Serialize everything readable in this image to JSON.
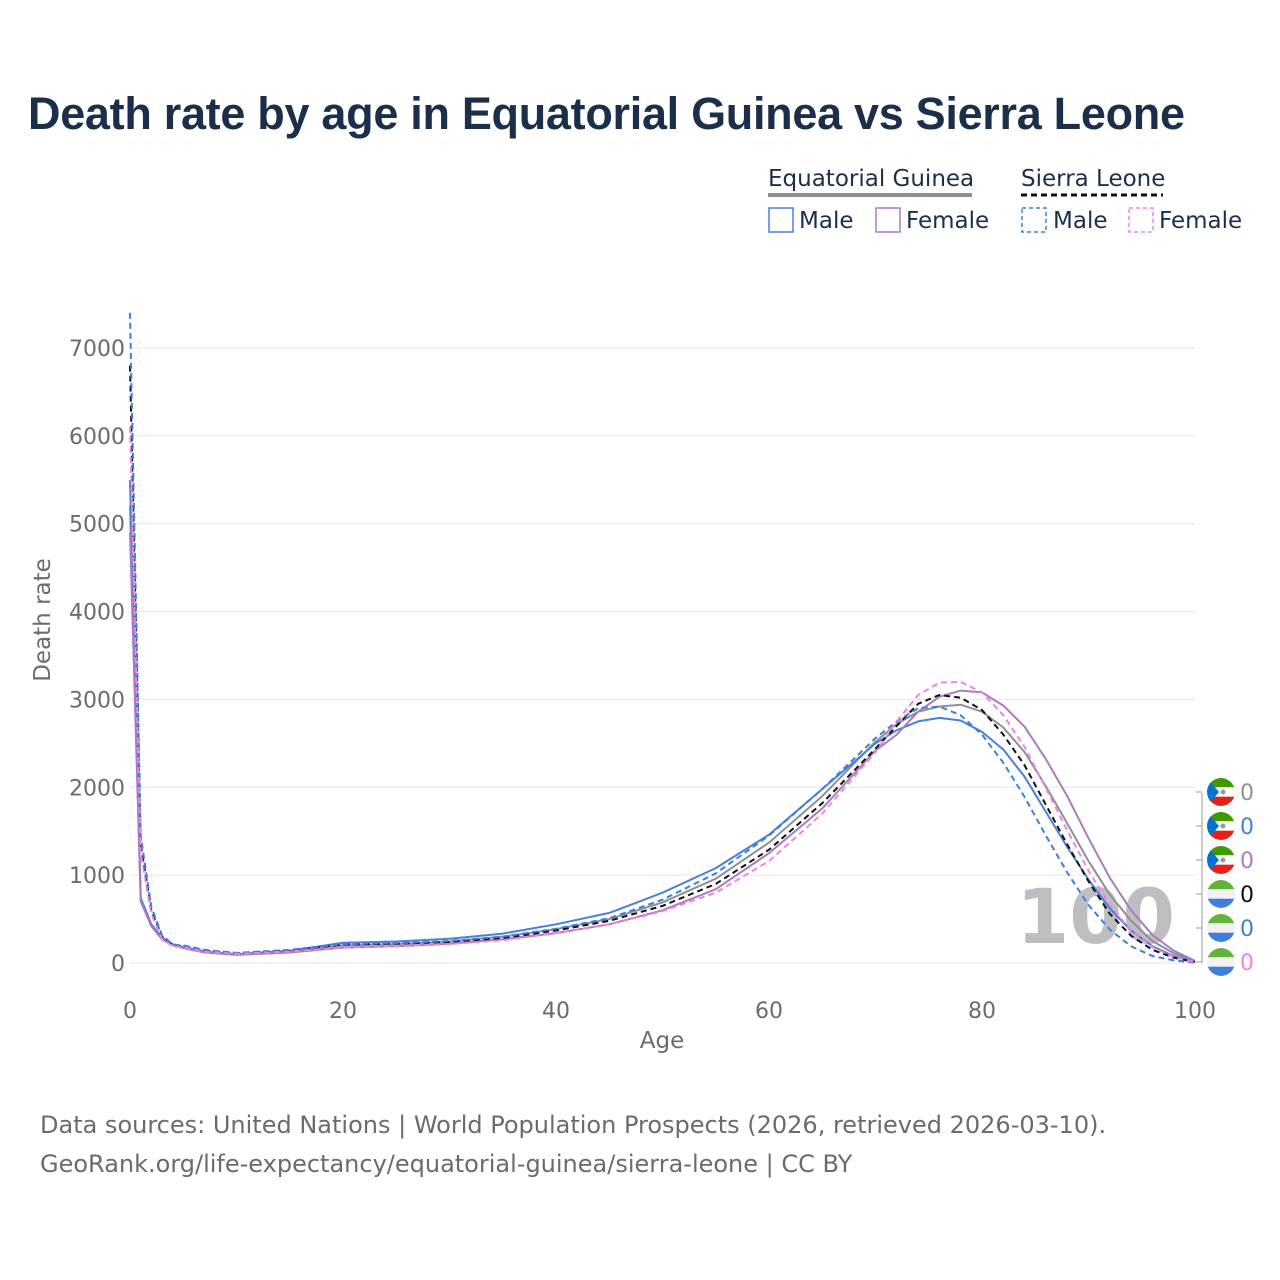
{
  "title": "Death rate by age in Equatorial Guinea vs Sierra Leone",
  "legend": {
    "groups": [
      {
        "country": "Equatorial Guinea",
        "style": "solid",
        "color": "#8f8f96",
        "items": [
          {
            "label": "Male",
            "color": "#4a80d8"
          },
          {
            "label": "Female",
            "color": "#a97cbd"
          }
        ]
      },
      {
        "country": "Sierra Leone",
        "style": "dashed",
        "color": "#111111",
        "items": [
          {
            "label": "Male",
            "color": "#3f7fd9"
          },
          {
            "label": "Female",
            "color": "#ee82e6"
          }
        ]
      }
    ]
  },
  "end_labels": [
    {
      "value": "0",
      "color": "#8f8f96",
      "flag": "equatorial-guinea"
    },
    {
      "value": "0",
      "color": "#4a80d8",
      "flag": "equatorial-guinea"
    },
    {
      "value": "0",
      "color": "#a97cbd",
      "flag": "equatorial-guinea"
    },
    {
      "value": "0",
      "color": "#111111",
      "flag": "sierra-leone"
    },
    {
      "value": "0",
      "color": "#3f7fd9",
      "flag": "sierra-leone"
    },
    {
      "value": "0",
      "color": "#ee82e6",
      "flag": "sierra-leone"
    }
  ],
  "watermark_age": "100",
  "footer": {
    "line1": "Data sources: United Nations | World Population Prospects (2026, retrieved 2026-03-10).",
    "line2": "GeoRank.org/life-expectancy/equatorial-guinea/sierra-leone | CC BY"
  },
  "chart_data": {
    "type": "line",
    "xlabel": "Age",
    "ylabel": "Death rate",
    "xlim": [
      0,
      100
    ],
    "ylim": [
      0,
      7000
    ],
    "xticks": [
      0,
      20,
      40,
      60,
      80,
      100
    ],
    "yticks": [
      0,
      1000,
      2000,
      3000,
      4000,
      5000,
      6000,
      7000
    ],
    "grid": true,
    "x": [
      0,
      1,
      2,
      3,
      4,
      5,
      7,
      10,
      15,
      20,
      25,
      30,
      35,
      40,
      45,
      50,
      55,
      60,
      65,
      70,
      72,
      74,
      76,
      78,
      80,
      82,
      84,
      86,
      88,
      90,
      92,
      94,
      96,
      98,
      100
    ],
    "series": [
      {
        "name": "Equatorial Guinea Total",
        "country": "Equatorial Guinea",
        "sex": "Total",
        "color": "#8f8f96",
        "dash": false,
        "values": [
          5200,
          720,
          430,
          280,
          210,
          175,
          125,
          95,
          130,
          200,
          215,
          245,
          300,
          385,
          500,
          690,
          960,
          1370,
          1900,
          2520,
          2720,
          2860,
          2920,
          2940,
          2860,
          2680,
          2400,
          2010,
          1590,
          1160,
          780,
          480,
          250,
          110,
          20
        ]
      },
      {
        "name": "Equatorial Guinea Male",
        "country": "Equatorial Guinea",
        "sex": "Male",
        "color": "#4a80d8",
        "dash": false,
        "values": [
          5500,
          740,
          440,
          290,
          215,
          180,
          130,
          100,
          140,
          230,
          245,
          275,
          335,
          440,
          570,
          800,
          1080,
          1460,
          1980,
          2500,
          2650,
          2750,
          2790,
          2760,
          2630,
          2430,
          2120,
          1720,
          1320,
          950,
          620,
          370,
          190,
          80,
          15
        ]
      },
      {
        "name": "Equatorial Guinea Female",
        "country": "Equatorial Guinea",
        "sex": "Female",
        "color": "#a97cbd",
        "dash": false,
        "values": [
          4900,
          700,
          420,
          270,
          205,
          170,
          120,
          92,
          120,
          175,
          190,
          220,
          270,
          340,
          440,
          600,
          840,
          1250,
          1760,
          2420,
          2600,
          2860,
          3030,
          3100,
          3080,
          2930,
          2690,
          2320,
          1900,
          1420,
          970,
          600,
          320,
          140,
          25
        ]
      },
      {
        "name": "Sierra Leone Total",
        "country": "Sierra Leone",
        "sex": "Total",
        "color": "#111111",
        "dash": true,
        "values": [
          6800,
          1350,
          600,
          300,
          200,
          190,
          140,
          110,
          140,
          210,
          220,
          240,
          285,
          370,
          480,
          650,
          900,
          1290,
          1820,
          2440,
          2700,
          2950,
          3050,
          3020,
          2880,
          2600,
          2250,
          1800,
          1350,
          930,
          560,
          310,
          150,
          60,
          10
        ]
      },
      {
        "name": "Sierra Leone Male",
        "country": "Sierra Leone",
        "sex": "Male",
        "color": "#3f7fd9",
        "dash": true,
        "values": [
          7400,
          1450,
          640,
          320,
          210,
          200,
          150,
          115,
          150,
          215,
          225,
          250,
          300,
          390,
          510,
          720,
          1020,
          1450,
          1980,
          2560,
          2750,
          2900,
          2920,
          2820,
          2600,
          2280,
          1890,
          1450,
          1030,
          660,
          380,
          190,
          80,
          30,
          5
        ]
      },
      {
        "name": "Sierra Leone Female",
        "country": "Sierra Leone",
        "sex": "Female",
        "color": "#ee82e6",
        "dash": true,
        "values": [
          6100,
          1250,
          560,
          280,
          190,
          180,
          130,
          105,
          130,
          180,
          190,
          215,
          260,
          340,
          440,
          590,
          800,
          1160,
          1700,
          2400,
          2750,
          3050,
          3190,
          3200,
          3080,
          2820,
          2460,
          1990,
          1510,
          1050,
          660,
          370,
          180,
          70,
          10
        ]
      }
    ]
  }
}
